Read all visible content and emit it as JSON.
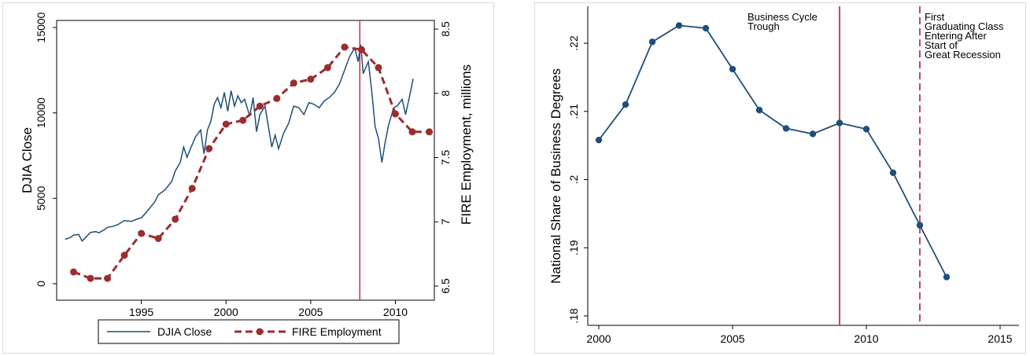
{
  "chart_data": [
    {
      "type": "line",
      "xlim": [
        1990,
        2012.3
      ],
      "x_ticks": [
        "1995",
        "2000",
        "2005",
        "2010"
      ],
      "y_left": {
        "label": "DJIA Close",
        "lim": [
          0,
          15000
        ],
        "ticks": [
          "0",
          "5000",
          "10000",
          "15000"
        ]
      },
      "y_right": {
        "label": "FIRE Employment, millions",
        "lim": [
          6.5,
          8.5
        ],
        "ticks": [
          "6.5",
          "7",
          "7.5",
          "8",
          "8.5"
        ]
      },
      "vertical_lines": [
        {
          "x": 2007.9,
          "style": "solid",
          "color": "#c8304a"
        }
      ],
      "grid": false,
      "legend_position": "bottom",
      "series": [
        {
          "name": "DJIA Close",
          "axis": "left",
          "color": "#1f4e79",
          "style": "solid",
          "points": [
            [
              1990.5,
              2600
            ],
            [
              1990.8,
              2700
            ],
            [
              1991.0,
              2850
            ],
            [
              1991.3,
              2880
            ],
            [
              1991.5,
              2500
            ],
            [
              1991.7,
              2700
            ],
            [
              1992.0,
              3000
            ],
            [
              1992.3,
              3050
            ],
            [
              1992.5,
              2980
            ],
            [
              1992.8,
              3150
            ],
            [
              1993.0,
              3300
            ],
            [
              1993.3,
              3350
            ],
            [
              1993.6,
              3450
            ],
            [
              1994.0,
              3700
            ],
            [
              1994.4,
              3650
            ],
            [
              1994.8,
              3800
            ],
            [
              1995.0,
              3850
            ],
            [
              1995.4,
              4300
            ],
            [
              1995.8,
              4800
            ],
            [
              1996.0,
              5200
            ],
            [
              1996.4,
              5500
            ],
            [
              1996.8,
              6000
            ],
            [
              1997.0,
              6600
            ],
            [
              1997.3,
              7100
            ],
            [
              1997.5,
              8000
            ],
            [
              1997.7,
              7400
            ],
            [
              1997.9,
              7900
            ],
            [
              1998.2,
              8600
            ],
            [
              1998.5,
              9000
            ],
            [
              1998.7,
              7600
            ],
            [
              1998.9,
              9000
            ],
            [
              1999.1,
              9500
            ],
            [
              1999.3,
              10500
            ],
            [
              1999.5,
              10900
            ],
            [
              1999.7,
              10300
            ],
            [
              1999.9,
              11200
            ],
            [
              2000.1,
              10100
            ],
            [
              2000.3,
              11300
            ],
            [
              2000.5,
              10400
            ],
            [
              2000.7,
              11000
            ],
            [
              2000.9,
              10600
            ],
            [
              2001.1,
              10800
            ],
            [
              2001.4,
              9800
            ],
            [
              2001.6,
              10900
            ],
            [
              2001.8,
              8900
            ],
            [
              2002.0,
              9900
            ],
            [
              2002.3,
              10400
            ],
            [
              2002.5,
              9200
            ],
            [
              2002.7,
              8000
            ],
            [
              2002.9,
              8700
            ],
            [
              2003.1,
              7900
            ],
            [
              2003.4,
              8800
            ],
            [
              2003.7,
              9400
            ],
            [
              2004.0,
              10400
            ],
            [
              2004.3,
              10300
            ],
            [
              2004.6,
              9900
            ],
            [
              2004.9,
              10600
            ],
            [
              2005.2,
              10500
            ],
            [
              2005.5,
              10300
            ],
            [
              2005.8,
              10700
            ],
            [
              2006.1,
              10900
            ],
            [
              2006.4,
              11200
            ],
            [
              2006.7,
              11700
            ],
            [
              2007.0,
              12500
            ],
            [
              2007.3,
              13300
            ],
            [
              2007.6,
              13800
            ],
            [
              2007.8,
              13000
            ],
            [
              2007.95,
              14000
            ],
            [
              2008.1,
              12300
            ],
            [
              2008.4,
              13000
            ],
            [
              2008.6,
              11300
            ],
            [
              2008.8,
              9200
            ],
            [
              2009.0,
              8500
            ],
            [
              2009.2,
              7100
            ],
            [
              2009.4,
              8300
            ],
            [
              2009.6,
              9300
            ],
            [
              2009.9,
              10300
            ],
            [
              2010.1,
              10400
            ],
            [
              2010.4,
              10800
            ],
            [
              2010.6,
              9900
            ],
            [
              2010.8,
              10800
            ],
            [
              2010.95,
              11500
            ],
            [
              2011.05,
              12000
            ]
          ]
        },
        {
          "name": "FIRE Employment",
          "axis": "right",
          "color": "#9b2d30",
          "style": "dashed",
          "markers": true,
          "points": [
            [
              1991,
              6.61
            ],
            [
              1992,
              6.56
            ],
            [
              1993,
              6.56
            ],
            [
              1994,
              6.74
            ],
            [
              1995,
              6.91
            ],
            [
              1996,
              6.87
            ],
            [
              1997,
              7.02
            ],
            [
              1998,
              7.26
            ],
            [
              1999,
              7.57
            ],
            [
              2000,
              7.76
            ],
            [
              2001,
              7.79
            ],
            [
              2002,
              7.9
            ],
            [
              2003,
              7.96
            ],
            [
              2004,
              8.08
            ],
            [
              2005,
              8.11
            ],
            [
              2006,
              8.2
            ],
            [
              2007,
              8.36
            ],
            [
              2008,
              8.34
            ],
            [
              2009,
              8.2
            ],
            [
              2010,
              7.84
            ],
            [
              2011,
              7.7
            ],
            [
              2012,
              7.7
            ]
          ]
        }
      ]
    },
    {
      "type": "line",
      "xlim": [
        1999.7,
        2015.3
      ],
      "x_ticks": [
        "2000",
        "2005",
        "2010",
        "2015"
      ],
      "y": {
        "label": "National Share of Business Degrees",
        "lim": [
          0.1795,
          0.2235
        ],
        "ticks": [
          ".18",
          ".19",
          ".2",
          ".21",
          ".22"
        ]
      },
      "grid": false,
      "vertical_lines": [
        {
          "x": 2009,
          "style": "solid",
          "color": "#c8304a",
          "label": [
            "Business Cycle",
            "Trough"
          ]
        },
        {
          "x": 2012,
          "style": "dashed",
          "color": "#c8304a",
          "label": [
            "First",
            "Graduating Class",
            "Entering After",
            "Start of",
            "Great Recession"
          ]
        }
      ],
      "series": [
        {
          "color": "#1f4e79",
          "markers": true,
          "points": [
            [
              2000,
              0.2058
            ],
            [
              2001,
              0.211
            ],
            [
              2002,
              0.2202
            ],
            [
              2003,
              0.2226
            ],
            [
              2004,
              0.2222
            ],
            [
              2005,
              0.2162
            ],
            [
              2006,
              0.2102
            ],
            [
              2007,
              0.2075
            ],
            [
              2008,
              0.2067
            ],
            [
              2009,
              0.2083
            ],
            [
              2010,
              0.2074
            ],
            [
              2011,
              0.201
            ],
            [
              2012,
              0.1933
            ],
            [
              2013,
              0.1857
            ]
          ]
        }
      ]
    }
  ]
}
